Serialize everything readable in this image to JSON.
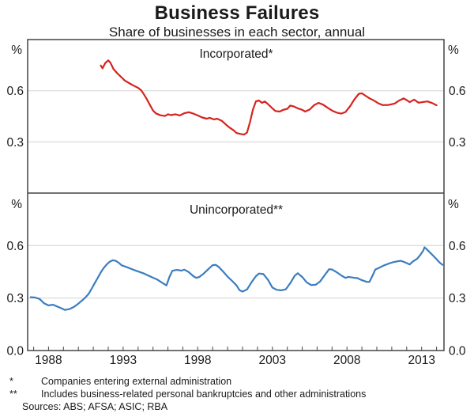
{
  "title": "Business Failures",
  "subtitle": "Share of businesses in each sector, annual",
  "footnotes": [
    {
      "marker": "*",
      "text": "Companies entering external administration"
    },
    {
      "marker": "**",
      "text": "Includes business-related personal bankruptcies and other administrations"
    }
  ],
  "sources": "Sources: ABS; AFSA; ASIC; RBA",
  "chart_data": [
    {
      "type": "line",
      "title": "Incorporated*",
      "ylabel": "%",
      "ylim": [
        0,
        0.9
      ],
      "yticks": [
        0.3,
        0.6
      ],
      "xlim": [
        1986.6,
        2014.5
      ],
      "xticks_labeled": [
        1988,
        1993,
        1998,
        2003,
        2008,
        2013
      ],
      "xticks_minor": {
        "from": 1987,
        "to": 2014,
        "step": 1
      },
      "grid": true,
      "legend_position": "none",
      "series": [
        {
          "name": "Incorporated (companies entering external administration)",
          "color": "#d6231e",
          "x": [
            1991.5,
            1991.62,
            1991.8,
            1992.0,
            1992.15,
            1992.35,
            1992.6,
            1992.9,
            1993.1,
            1993.4,
            1993.7,
            1994.0,
            1994.2,
            1994.4,
            1994.55,
            1994.7,
            1994.85,
            1995.0,
            1995.2,
            1995.5,
            1995.8,
            1996.0,
            1996.2,
            1996.5,
            1996.8,
            1997.1,
            1997.4,
            1997.7,
            1998.0,
            1998.3,
            1998.6,
            1998.8,
            1999.1,
            1999.3,
            1999.6,
            1999.9,
            2000.1,
            2000.4,
            2000.6,
            2000.9,
            2001.1,
            2001.3,
            2001.5,
            2001.7,
            2001.9,
            2002.1,
            2002.3,
            2002.5,
            2002.7,
            2003.0,
            2003.2,
            2003.5,
            2003.7,
            2004.0,
            2004.2,
            2004.4,
            2004.7,
            2005.0,
            2005.2,
            2005.5,
            2005.8,
            2006.1,
            2006.4,
            2006.7,
            2007.0,
            2007.3,
            2007.6,
            2007.9,
            2008.2,
            2008.5,
            2008.8,
            2009.0,
            2009.2,
            2009.5,
            2009.8,
            2010.1,
            2010.4,
            2010.8,
            2011.2,
            2011.5,
            2011.8,
            2012.0,
            2012.2,
            2012.5,
            2012.8,
            2013.1,
            2013.4,
            2013.7,
            2014.0
          ],
          "y": [
            0.748,
            0.731,
            0.762,
            0.778,
            0.764,
            0.728,
            0.703,
            0.678,
            0.66,
            0.645,
            0.63,
            0.617,
            0.603,
            0.578,
            0.556,
            0.532,
            0.508,
            0.484,
            0.467,
            0.456,
            0.452,
            0.462,
            0.457,
            0.462,
            0.455,
            0.468,
            0.474,
            0.466,
            0.455,
            0.443,
            0.436,
            0.441,
            0.432,
            0.436,
            0.424,
            0.401,
            0.386,
            0.368,
            0.352,
            0.346,
            0.343,
            0.355,
            0.415,
            0.49,
            0.538,
            0.543,
            0.529,
            0.537,
            0.522,
            0.497,
            0.481,
            0.478,
            0.487,
            0.494,
            0.513,
            0.509,
            0.497,
            0.488,
            0.478,
            0.49,
            0.516,
            0.529,
            0.518,
            0.5,
            0.484,
            0.472,
            0.466,
            0.475,
            0.508,
            0.55,
            0.582,
            0.585,
            0.573,
            0.556,
            0.543,
            0.526,
            0.516,
            0.517,
            0.525,
            0.543,
            0.555,
            0.545,
            0.533,
            0.548,
            0.53,
            0.534,
            0.537,
            0.528,
            0.515
          ]
        }
      ]
    },
    {
      "type": "line",
      "title": "Unincorporated**",
      "ylabel": "%",
      "ylim": [
        0,
        0.9
      ],
      "yticks": [
        0.0,
        0.3,
        0.6
      ],
      "xlim": [
        1986.6,
        2014.5
      ],
      "xticks_labeled": [
        1988,
        1993,
        1998,
        2003,
        2008,
        2013
      ],
      "xticks_minor": {
        "from": 1987,
        "to": 2014,
        "step": 1
      },
      "grid": true,
      "legend_position": "none",
      "series": [
        {
          "name": "Unincorporated (business-related personal bankruptcies and other administrations)",
          "color": "#3b7dbf",
          "x": [
            1986.8,
            1987.1,
            1987.4,
            1987.7,
            1988.0,
            1988.3,
            1988.6,
            1988.9,
            1989.1,
            1989.4,
            1989.7,
            1990.0,
            1990.3,
            1990.5,
            1990.7,
            1990.9,
            1991.1,
            1991.3,
            1991.5,
            1991.7,
            1991.9,
            1992.1,
            1992.3,
            1992.5,
            1992.7,
            1992.9,
            1993.2,
            1993.5,
            1993.8,
            1994.1,
            1994.4,
            1994.7,
            1995.0,
            1995.3,
            1995.6,
            1995.9,
            1996.1,
            1996.3,
            1996.6,
            1996.9,
            1997.1,
            1997.4,
            1997.7,
            1997.9,
            1998.1,
            1998.4,
            1998.7,
            1999.0,
            1999.2,
            1999.4,
            1999.7,
            2000.0,
            2000.3,
            2000.6,
            2000.8,
            2001.0,
            2001.3,
            2001.6,
            2001.9,
            2002.1,
            2002.4,
            2002.7,
            2003.0,
            2003.3,
            2003.6,
            2003.9,
            2004.2,
            2004.5,
            2004.7,
            2005.0,
            2005.3,
            2005.6,
            2005.9,
            2006.2,
            2006.5,
            2006.8,
            2007.0,
            2007.3,
            2007.6,
            2007.9,
            2008.1,
            2008.4,
            2008.7,
            2009.0,
            2009.3,
            2009.5,
            2009.7,
            2009.9,
            2010.2,
            2010.5,
            2010.8,
            2011.1,
            2011.4,
            2011.6,
            2011.9,
            2012.2,
            2012.4,
            2012.7,
            2012.9,
            2013.1,
            2013.2,
            2013.4,
            2013.6,
            2013.8,
            2014.0,
            2014.2,
            2014.4
          ],
          "y": [
            0.305,
            0.303,
            0.295,
            0.27,
            0.258,
            0.262,
            0.251,
            0.24,
            0.232,
            0.237,
            0.249,
            0.268,
            0.29,
            0.306,
            0.325,
            0.355,
            0.386,
            0.416,
            0.447,
            0.472,
            0.492,
            0.508,
            0.516,
            0.513,
            0.502,
            0.487,
            0.478,
            0.468,
            0.458,
            0.449,
            0.44,
            0.428,
            0.416,
            0.405,
            0.388,
            0.372,
            0.42,
            0.456,
            0.461,
            0.457,
            0.462,
            0.448,
            0.425,
            0.415,
            0.42,
            0.44,
            0.465,
            0.488,
            0.49,
            0.478,
            0.452,
            0.422,
            0.398,
            0.372,
            0.345,
            0.337,
            0.349,
            0.39,
            0.425,
            0.44,
            0.437,
            0.405,
            0.36,
            0.347,
            0.344,
            0.35,
            0.385,
            0.428,
            0.442,
            0.42,
            0.39,
            0.374,
            0.376,
            0.395,
            0.43,
            0.465,
            0.463,
            0.448,
            0.43,
            0.415,
            0.421,
            0.417,
            0.414,
            0.402,
            0.393,
            0.392,
            0.425,
            0.463,
            0.475,
            0.487,
            0.497,
            0.505,
            0.51,
            0.513,
            0.504,
            0.492,
            0.508,
            0.524,
            0.545,
            0.57,
            0.59,
            0.574,
            0.557,
            0.54,
            0.522,
            0.504,
            0.49
          ]
        }
      ]
    }
  ]
}
